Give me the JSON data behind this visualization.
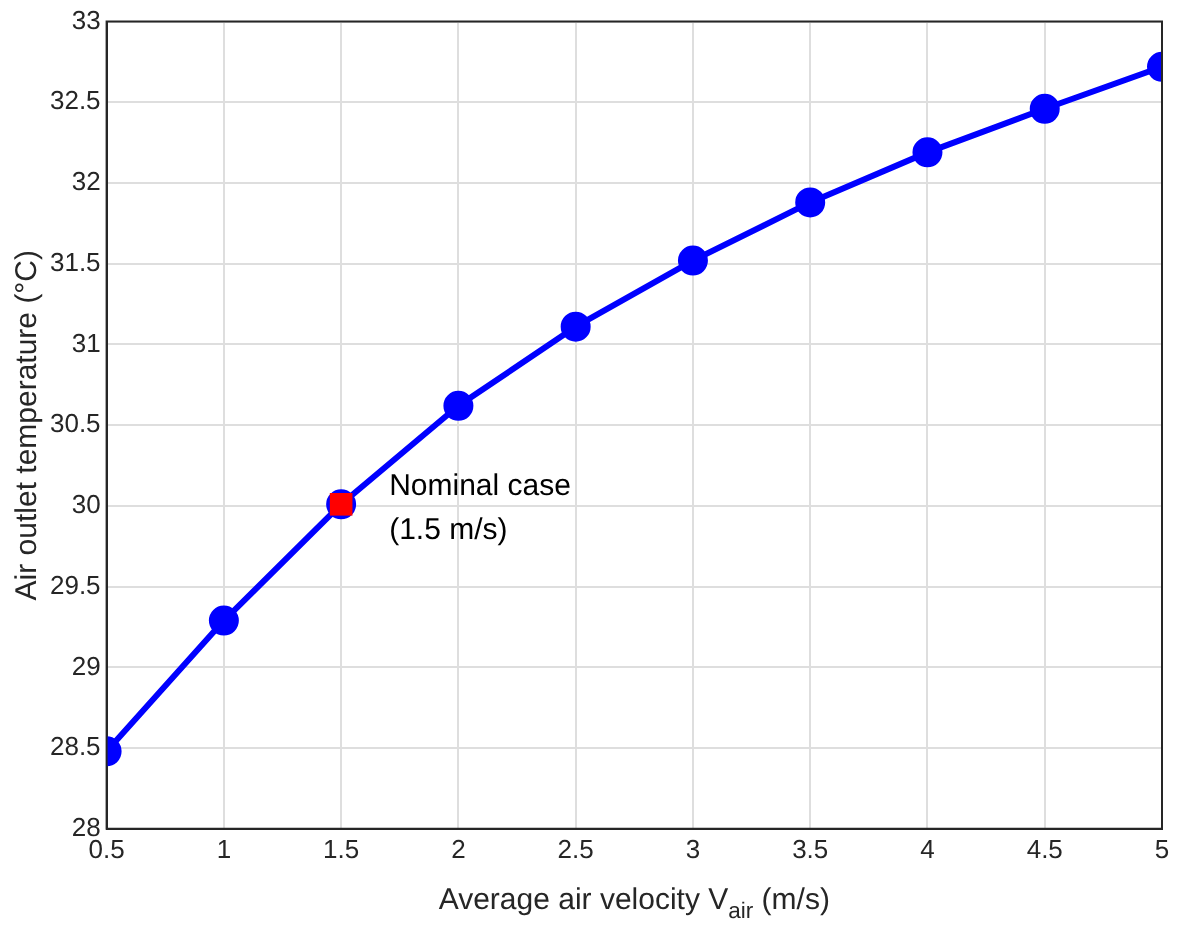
{
  "chart_data": {
    "type": "line",
    "xlabel": "Average air velocity V$_{air}$ (m/s)",
    "ylabel": "Air outlet temperature (°C)",
    "x": [
      0.5,
      1,
      1.5,
      2,
      2.5,
      3,
      3.5,
      4,
      4.5,
      5
    ],
    "series": [
      {
        "color": "#0000ff",
        "values": [
          28.48,
          29.29,
          30.01,
          30.62,
          31.11,
          31.52,
          31.88,
          32.19,
          32.46,
          32.72
        ],
        "marker": "circle"
      },
      {
        "type": "scatter",
        "color": "#ff0000",
        "x": [
          1.5
        ],
        "values": [
          30.01
        ],
        "marker": "square"
      }
    ],
    "annotations": [
      {
        "text": "Nominal case\n(1.5 m/s)",
        "x": 1.5,
        "y": 30.01
      }
    ],
    "xlim": [
      0.5,
      5
    ],
    "xticks": [
      0.5,
      1,
      1.5,
      2,
      2.5,
      3,
      3.5,
      4,
      4.5,
      5
    ],
    "ylim": [
      28,
      33
    ],
    "yticks": [
      28,
      28.5,
      29,
      29.5,
      30,
      30.5,
      31,
      31.5,
      32,
      32.5,
      33
    ],
    "grid": true,
    "legend": false
  }
}
